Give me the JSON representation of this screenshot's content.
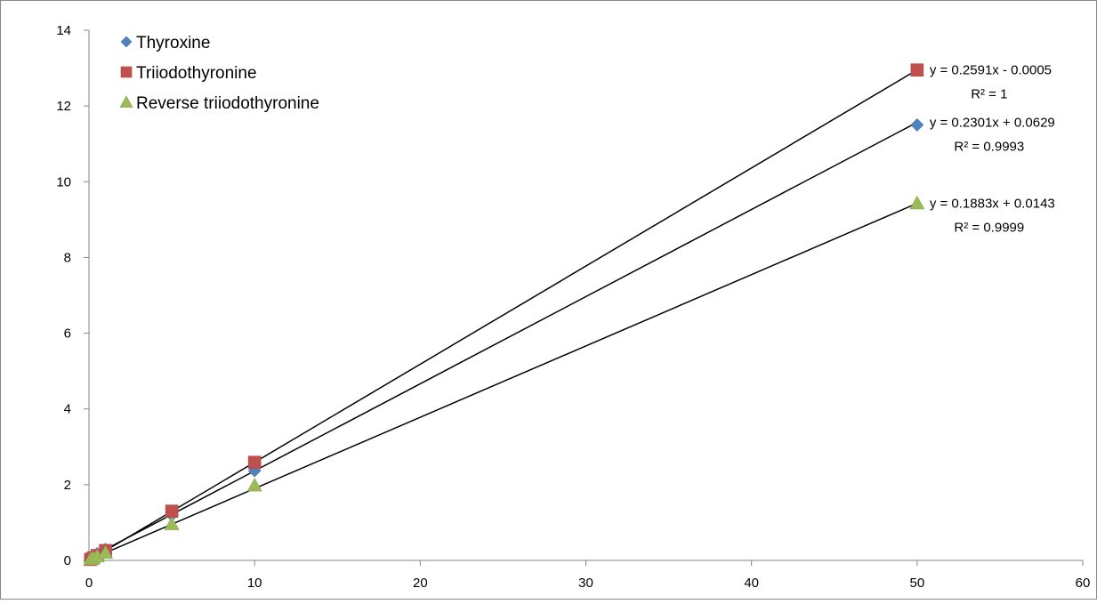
{
  "chart_data": {
    "type": "scatter",
    "title": "",
    "xlabel": "",
    "ylabel": "",
    "xlim": [
      0,
      60
    ],
    "ylim": [
      0,
      14
    ],
    "xticks": [
      0,
      10,
      20,
      30,
      40,
      50,
      60
    ],
    "yticks": [
      0,
      2,
      4,
      6,
      8,
      10,
      12,
      14
    ],
    "grid": false,
    "legend_position": "top-left",
    "series": [
      {
        "name": "Thyroxine",
        "marker": "diamond",
        "color": "#4f81bd",
        "x": [
          0.1,
          0.25,
          0.5,
          1,
          5,
          10,
          50
        ],
        "y": [
          0.085,
          0.12,
          0.18,
          0.29,
          1.2,
          2.37,
          11.5
        ],
        "trendline": {
          "slope": 0.2301,
          "intercept": 0.0629,
          "equation": "y = 0.2301x + 0.0629",
          "r2": "R² = 0.9993"
        }
      },
      {
        "name": "Triiodothyronine",
        "marker": "square",
        "color": "#c0504d",
        "x": [
          0.1,
          0.25,
          0.5,
          1,
          5,
          10,
          50
        ],
        "y": [
          0.026,
          0.065,
          0.13,
          0.26,
          1.3,
          2.59,
          12.95
        ],
        "trendline": {
          "slope": 0.2591,
          "intercept": -0.0005,
          "equation": "y = 0.2591x - 0.0005",
          "r2": "R² = 1"
        }
      },
      {
        "name": "Reverse triiodothyronine",
        "marker": "triangle",
        "color": "#9bbb59",
        "x": [
          0.1,
          0.25,
          0.5,
          1,
          5,
          10,
          50
        ],
        "y": [
          0.033,
          0.061,
          0.108,
          0.2,
          0.96,
          1.98,
          9.43
        ],
        "trendline": {
          "slope": 0.1883,
          "intercept": 0.0143,
          "equation": "y = 0.1883x + 0.0143",
          "r2": "R² = 0.9999"
        }
      }
    ]
  }
}
